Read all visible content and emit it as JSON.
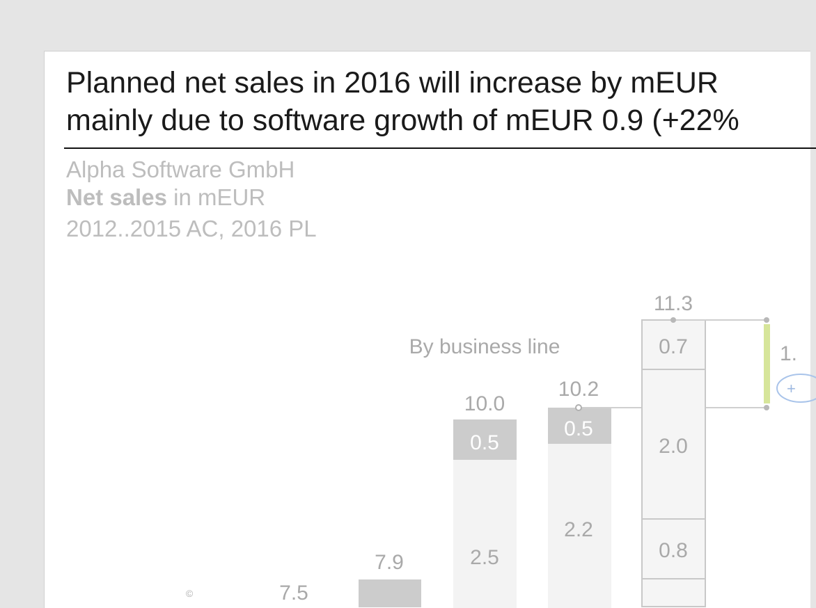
{
  "title": {
    "line1": "Planned net sales in 2016 will increase by mEUR",
    "line2": "mainly due to software growth of mEUR 0.9 (+22%"
  },
  "subtitle": {
    "company": "Alpha Software GmbH",
    "measure": "Net sales",
    "unit": " in mEUR",
    "period": "2012..2015 AC, 2016 PL"
  },
  "chart_data": {
    "type": "bar",
    "annotation": "By business line",
    "colors": {
      "dark": "#cccccc",
      "light": "#f3f3f3",
      "outline": "#c8c8c8",
      "accent": "#d6e59a"
    },
    "totals": [
      {
        "label": "7.5",
        "value": 7.5
      },
      {
        "label": "7.9",
        "value": 7.9
      },
      {
        "label": "10.0",
        "value": 10.0
      },
      {
        "label": "10.2",
        "value": 10.2
      },
      {
        "label": "11.3",
        "value": 11.3
      }
    ],
    "segments": [
      {
        "bar": "10.0",
        "value": 0.5,
        "label": "0.5",
        "style": "dark"
      },
      {
        "bar": "10.0",
        "value": 2.5,
        "label": "2.5",
        "style": "light"
      },
      {
        "bar": "10.2",
        "value": 0.5,
        "label": "0.5",
        "style": "dark"
      },
      {
        "bar": "10.2",
        "value": 2.2,
        "label": "2.2",
        "style": "light"
      },
      {
        "bar": "11.3",
        "value": 0.7,
        "label": "0.7",
        "style": "outline"
      },
      {
        "bar": "11.3",
        "value": 2.0,
        "label": "2.0",
        "style": "outline"
      },
      {
        "bar": "11.3",
        "value": 0.8,
        "label": "0.8",
        "style": "outline"
      }
    ]
  }
}
